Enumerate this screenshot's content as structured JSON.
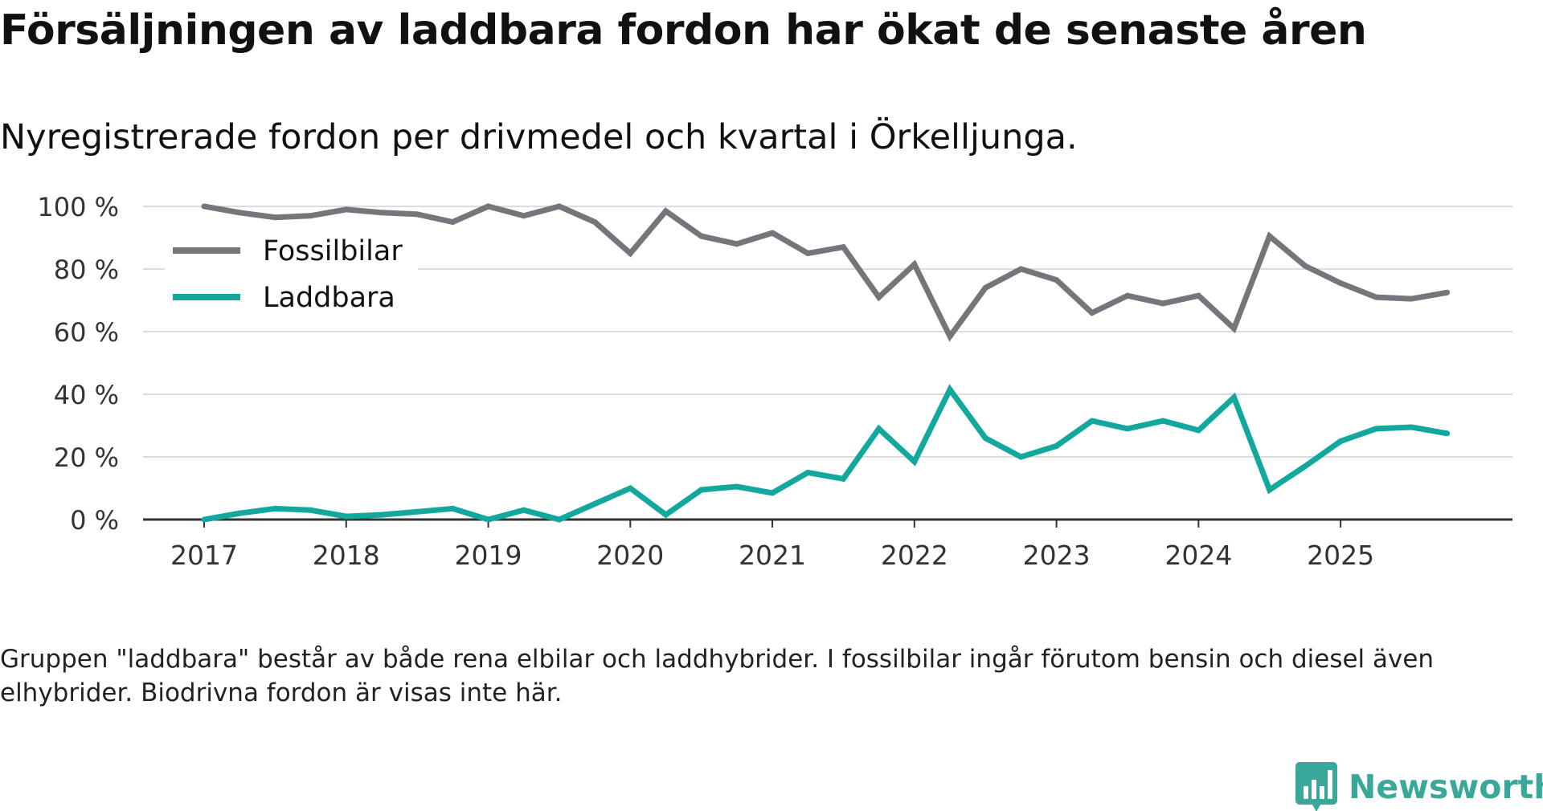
{
  "title": "Försäljningen av laddbara fordon har ökat de senaste åren",
  "subtitle": "Nyregistrerade fordon per drivmedel och kvartal i Örkelljunga.",
  "note": "Gruppen \"laddbara\" består av både rena elbilar och laddhybrider. I fossilbilar ingår förutom bensin och diesel även elhybrider. Biodrivna fordon är visas inte här.",
  "brand": {
    "name": "Newsworthy",
    "icon": "newsworthy-logo-icon",
    "color": "#3aa79b"
  },
  "chart_data": {
    "type": "line",
    "title": "Försäljningen av laddbara fordon har ökat de senaste åren",
    "subtitle": "Nyregistrerade fordon per drivmedel och kvartal i Örkelljunga.",
    "xlabel": "",
    "ylabel": "",
    "ylim": [
      0,
      100
    ],
    "y_ticks": [
      0,
      20,
      40,
      60,
      80,
      100
    ],
    "y_tick_labels": [
      "0 %",
      "20 %",
      "40 %",
      "60 %",
      "80 %",
      "100 %"
    ],
    "x_ticks": [
      2017,
      2018,
      2019,
      2020,
      2021,
      2022,
      2023,
      2024,
      2025
    ],
    "x_tick_labels": [
      "2017",
      "2018",
      "2019",
      "2020",
      "2021",
      "2022",
      "2023",
      "2024",
      "2025"
    ],
    "xlim": [
      2016.57,
      2026.21
    ],
    "grid": true,
    "legend_position": "top-left",
    "x": [
      2017.0,
      2017.25,
      2017.5,
      2017.75,
      2018.0,
      2018.25,
      2018.5,
      2018.75,
      2019.0,
      2019.25,
      2019.5,
      2019.75,
      2020.0,
      2020.25,
      2020.5,
      2020.75,
      2021.0,
      2021.25,
      2021.5,
      2021.75,
      2022.0,
      2022.25,
      2022.5,
      2022.75,
      2023.0,
      2023.25,
      2023.5,
      2023.75,
      2024.0,
      2024.25,
      2024.5,
      2024.75,
      2025.0,
      2025.25,
      2025.5,
      2025.75
    ],
    "series": [
      {
        "name": "Fossilbilar",
        "color": "#75757b",
        "values": [
          100,
          98,
          96.5,
          97,
          99,
          98,
          97.5,
          95,
          100,
          97,
          100,
          95,
          85,
          98.5,
          90.5,
          88,
          91.5,
          85,
          87,
          71,
          81.5,
          58.5,
          74,
          80,
          76.5,
          66,
          71.5,
          69,
          71.5,
          61,
          90.5,
          81,
          75.5,
          71,
          70.5,
          72.5
        ]
      },
      {
        "name": "Laddbara",
        "color": "#13a89e",
        "values": [
          0,
          2,
          3.5,
          3,
          1,
          1.5,
          2.5,
          3.5,
          0,
          3,
          0,
          5,
          10,
          1.5,
          9.5,
          10.5,
          8.5,
          15,
          13,
          29,
          18.5,
          41.5,
          26,
          20,
          23.5,
          31.5,
          29,
          31.5,
          28.5,
          39,
          9.5,
          17,
          25,
          29,
          29.5,
          27.5
        ]
      }
    ]
  }
}
